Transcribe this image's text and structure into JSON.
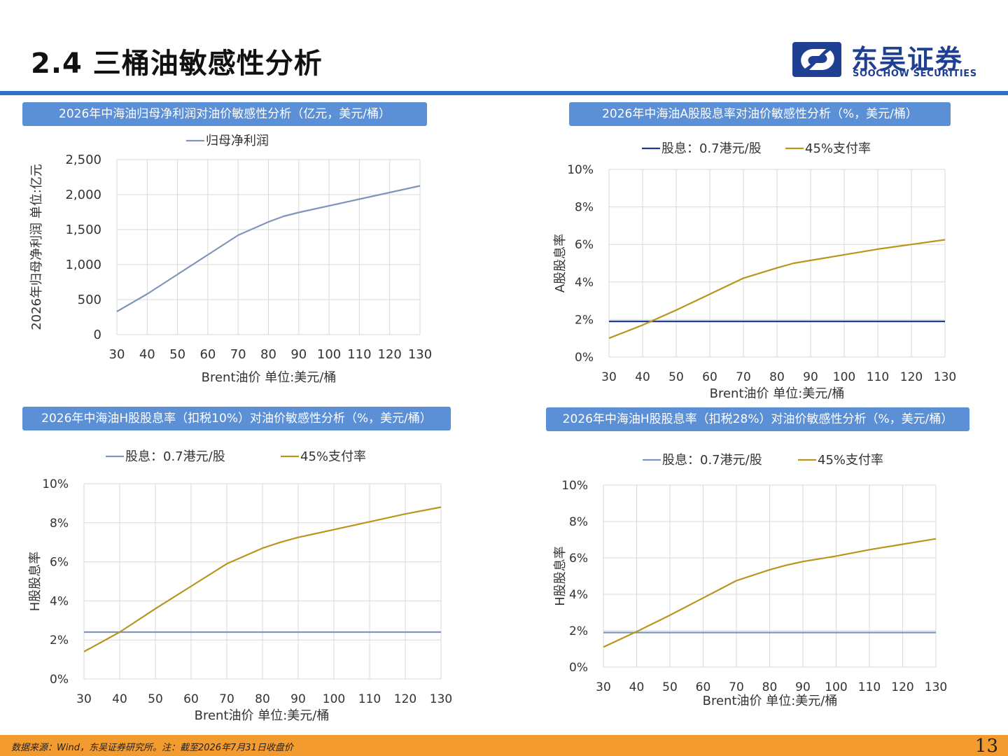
{
  "page": {
    "title": "2.4 三桶油敏感性分析",
    "page_number": "13"
  },
  "logo": {
    "cn": "东吴证券",
    "en": "SOOCHOW SECURITIES"
  },
  "colors": {
    "accent_blue": "#2b72c4",
    "banner_blue": "#5b8fd6",
    "series_slate": "#7f96b8",
    "series_navy": "#1f3a8a",
    "series_gold": "#b8961e",
    "footer_orange": "#f49b2f"
  },
  "footer": {
    "source": "数据来源：Wind，东吴证券研究所。注：截至2026年7月31日收盘价"
  },
  "chart_data": [
    {
      "type": "line",
      "banner": "2026年中海油归母净利润对油价敏感性分析（亿元，美元/桶）",
      "x": [
        30,
        40,
        50,
        60,
        70,
        80,
        85,
        90,
        100,
        110,
        120,
        130
      ],
      "series": [
        {
          "name": "归母净利润",
          "color": "#7f96b8",
          "values": [
            330,
            580,
            860,
            1140,
            1420,
            1610,
            1690,
            1745,
            1840,
            1935,
            2030,
            2125
          ]
        }
      ],
      "xticks": [
        30,
        40,
        50,
        60,
        70,
        80,
        90,
        100,
        110,
        120,
        130
      ],
      "yticks": [
        0,
        500,
        1000,
        1500,
        2000,
        2500
      ],
      "ytick_labels": [
        "0",
        "500",
        "1,000",
        "1,500",
        "2,000",
        "2,500"
      ],
      "xlim": [
        30,
        130
      ],
      "ylim": [
        0,
        2500
      ],
      "xlabel": "Brent油价  单位:美元/桶",
      "ylabel": "2026年归母净利润  单位:亿元",
      "legend": "top",
      "grid": true
    },
    {
      "type": "line",
      "banner": "2026年中海油A股股息率对油价敏感性分析（%，美元/桶）",
      "x": [
        30,
        40,
        50,
        60,
        70,
        80,
        85,
        90,
        100,
        110,
        120,
        130
      ],
      "series": [
        {
          "name": "股息：0.7港元/股",
          "color": "#1f3a8a",
          "values": [
            1.9,
            1.9,
            1.9,
            1.9,
            1.9,
            1.9,
            1.9,
            1.9,
            1.9,
            1.9,
            1.9,
            1.9
          ]
        },
        {
          "name": "45%支付率",
          "color": "#b8961e",
          "values": [
            1.0,
            1.7,
            2.5,
            3.35,
            4.2,
            4.75,
            5.0,
            5.15,
            5.45,
            5.75,
            6.0,
            6.25
          ]
        }
      ],
      "xticks": [
        30,
        40,
        50,
        60,
        70,
        80,
        90,
        100,
        110,
        120,
        130
      ],
      "yticks": [
        0,
        2,
        4,
        6,
        8,
        10
      ],
      "ytick_labels": [
        "0%",
        "2%",
        "4%",
        "6%",
        "8%",
        "10%"
      ],
      "xlim": [
        30,
        130
      ],
      "ylim": [
        0,
        10
      ],
      "xlabel": "Brent油价  单位:美元/桶",
      "ylabel": "A股股息率",
      "legend": "top",
      "grid": true
    },
    {
      "type": "line",
      "banner": "2026年中海油H股股息率（扣税10%）对油价敏感性分析（%，美元/桶）",
      "x": [
        30,
        40,
        50,
        60,
        70,
        80,
        85,
        90,
        100,
        110,
        120,
        130
      ],
      "series": [
        {
          "name": "股息：0.7港元/股",
          "color": "#7f96b8",
          "values": [
            2.4,
            2.4,
            2.4,
            2.4,
            2.4,
            2.4,
            2.4,
            2.4,
            2.4,
            2.4,
            2.4,
            2.4
          ]
        },
        {
          "name": "45%支付率",
          "color": "#b8961e",
          "values": [
            1.4,
            2.4,
            3.6,
            4.75,
            5.9,
            6.7,
            7.0,
            7.25,
            7.65,
            8.05,
            8.45,
            8.8
          ]
        }
      ],
      "xticks": [
        30,
        40,
        50,
        60,
        70,
        80,
        90,
        100,
        110,
        120,
        130
      ],
      "yticks": [
        0,
        2,
        4,
        6,
        8,
        10
      ],
      "ytick_labels": [
        "0%",
        "2%",
        "4%",
        "6%",
        "8%",
        "10%"
      ],
      "xlim": [
        30,
        130
      ],
      "ylim": [
        0,
        10
      ],
      "xlabel": "Brent油价  单位:美元/桶",
      "ylabel": "H股股息率",
      "legend": "top",
      "grid": true
    },
    {
      "type": "line",
      "banner": "2026年中海油H股股息率（扣税28%）对油价敏感性分析（%，美元/桶）",
      "x": [
        30,
        40,
        50,
        60,
        70,
        80,
        85,
        90,
        100,
        110,
        120,
        130
      ],
      "series": [
        {
          "name": "股息：0.7港元/股",
          "color": "#7f96b8",
          "values": [
            1.9,
            1.9,
            1.9,
            1.9,
            1.9,
            1.9,
            1.9,
            1.9,
            1.9,
            1.9,
            1.9,
            1.9
          ]
        },
        {
          "name": "45%支付率",
          "color": "#b8961e",
          "values": [
            1.1,
            1.95,
            2.85,
            3.8,
            4.75,
            5.35,
            5.6,
            5.8,
            6.1,
            6.45,
            6.75,
            7.05
          ]
        }
      ],
      "xticks": [
        30,
        40,
        50,
        60,
        70,
        80,
        90,
        100,
        110,
        120,
        130
      ],
      "yticks": [
        0,
        2,
        4,
        6,
        8,
        10
      ],
      "ytick_labels": [
        "0%",
        "2%",
        "4%",
        "6%",
        "8%",
        "10%"
      ],
      "xlim": [
        30,
        130
      ],
      "ylim": [
        0,
        10
      ],
      "xlabel": "Brent油价  单位:美元/桶",
      "ylabel": "H股股息率",
      "legend": "top",
      "grid": true
    }
  ]
}
